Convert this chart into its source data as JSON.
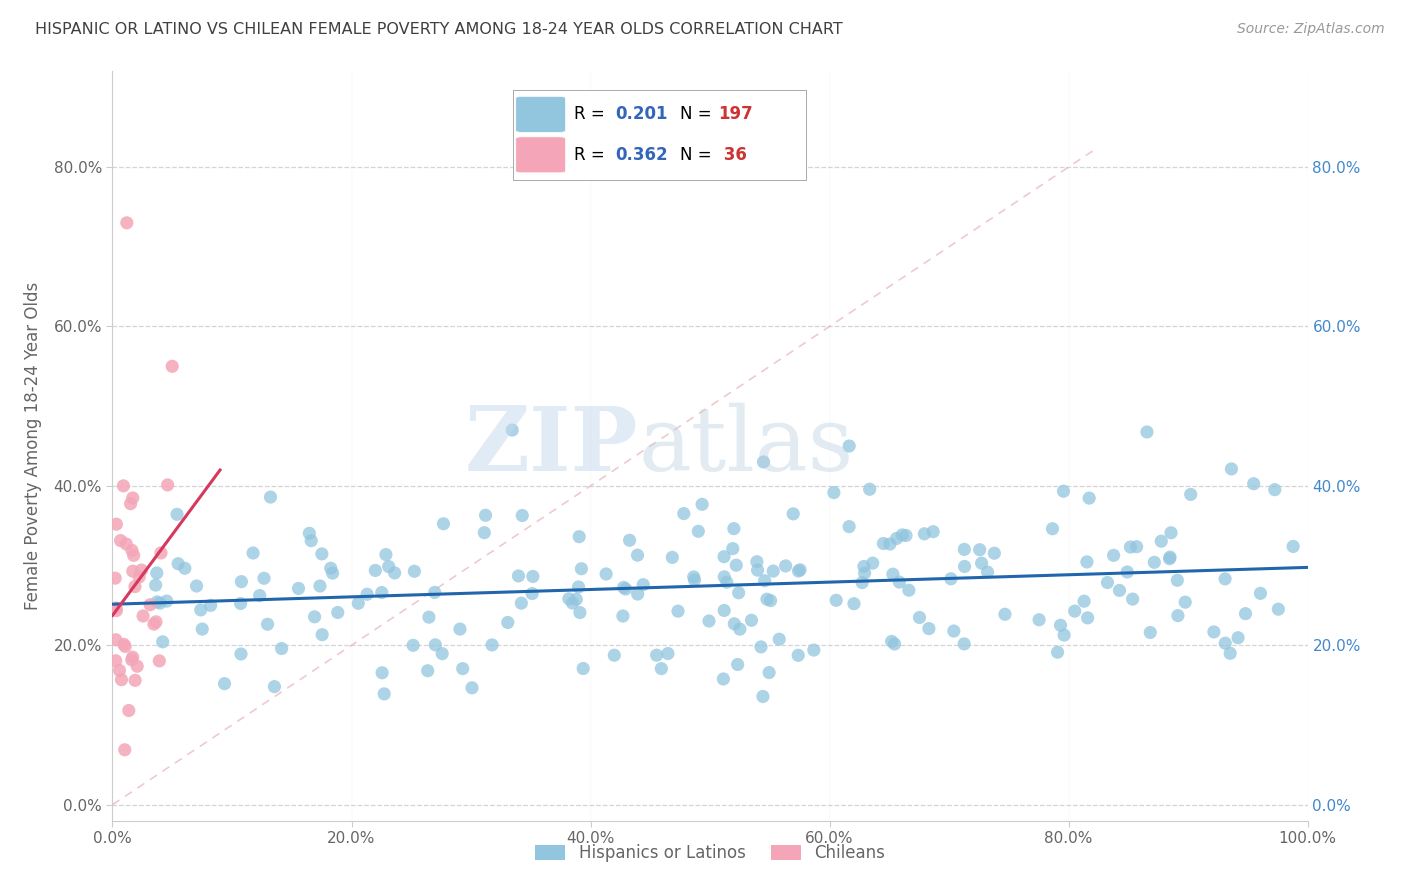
{
  "title": "HISPANIC OR LATINO VS CHILEAN FEMALE POVERTY AMONG 18-24 YEAR OLDS CORRELATION CHART",
  "source": "Source: ZipAtlas.com",
  "ylabel": "Female Poverty Among 18-24 Year Olds",
  "xlim": [
    0,
    1.0
  ],
  "ylim": [
    -0.02,
    0.92
  ],
  "xticks": [
    0.0,
    0.2,
    0.4,
    0.6,
    0.8,
    1.0
  ],
  "yticks": [
    0.0,
    0.2,
    0.4,
    0.6,
    0.8
  ],
  "xtick_labels_left": [
    "0.0%",
    "20.0%",
    "40.0%",
    "60.0%",
    "80.0%",
    "100.0%"
  ],
  "ytick_labels_left": [
    "0.0%",
    "20.0%",
    "40.0%",
    "60.0%",
    "80.0%"
  ],
  "ytick_labels_right": [
    "0.0%",
    "20.0%",
    "40.0%",
    "60.0%",
    "80.0%"
  ],
  "blue_color": "#92c5de",
  "pink_color": "#f4a6b8",
  "line_blue": "#2166ac",
  "line_pink": "#d6395e",
  "diag_color": "#e8b4b8",
  "R_blue": 0.201,
  "N_blue": 197,
  "R_pink": 0.362,
  "N_pink": 36,
  "watermark_zip": "ZIP",
  "watermark_atlas": "atlas",
  "legend_labels": [
    "Hispanics or Latinos",
    "Chileans"
  ],
  "background_color": "#ffffff",
  "grid_color": "#d0d0d0",
  "title_color": "#404040",
  "axis_color": "#666666",
  "right_label_color": "#4488cc",
  "legend_R_color": "#3366bb",
  "legend_N_color": "#cc3333"
}
